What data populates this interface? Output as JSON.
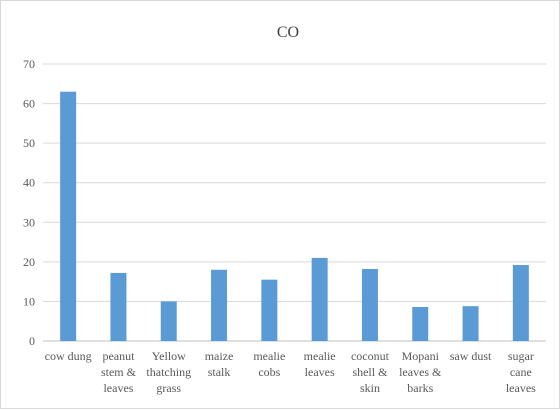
{
  "chart_data": {
    "type": "bar",
    "title": "CO",
    "xlabel": "",
    "ylabel": "",
    "ylim": [
      0,
      70
    ],
    "yticks": [
      "0",
      "10",
      "20",
      "30",
      "40",
      "50",
      "60",
      "70"
    ],
    "grid": true,
    "legend": "none",
    "bar_color": "#5b9bd5",
    "categories": [
      "cow dung",
      "peanut stem & leaves",
      "Yellow thatching grass",
      "maize stalk",
      "mealie cobs",
      "mealie leaves",
      "coconut shell & skin",
      "Mopani leaves & barks",
      "saw dust",
      "sugar cane leaves"
    ],
    "category_lines": [
      [
        "cow dung"
      ],
      [
        "peanut",
        "stem &",
        "leaves"
      ],
      [
        "Yellow",
        "thatching",
        "grass"
      ],
      [
        "maize",
        "stalk"
      ],
      [
        "mealie",
        "cobs"
      ],
      [
        "mealie",
        "leaves"
      ],
      [
        "coconut",
        "shell &",
        "skin"
      ],
      [
        "Mopani",
        "leaves &",
        "barks"
      ],
      [
        "saw dust"
      ],
      [
        "sugar",
        "cane",
        "leaves"
      ]
    ],
    "values": [
      63,
      17.2,
      10,
      18,
      15.5,
      21,
      18.2,
      8.6,
      8.8,
      19.2
    ]
  }
}
